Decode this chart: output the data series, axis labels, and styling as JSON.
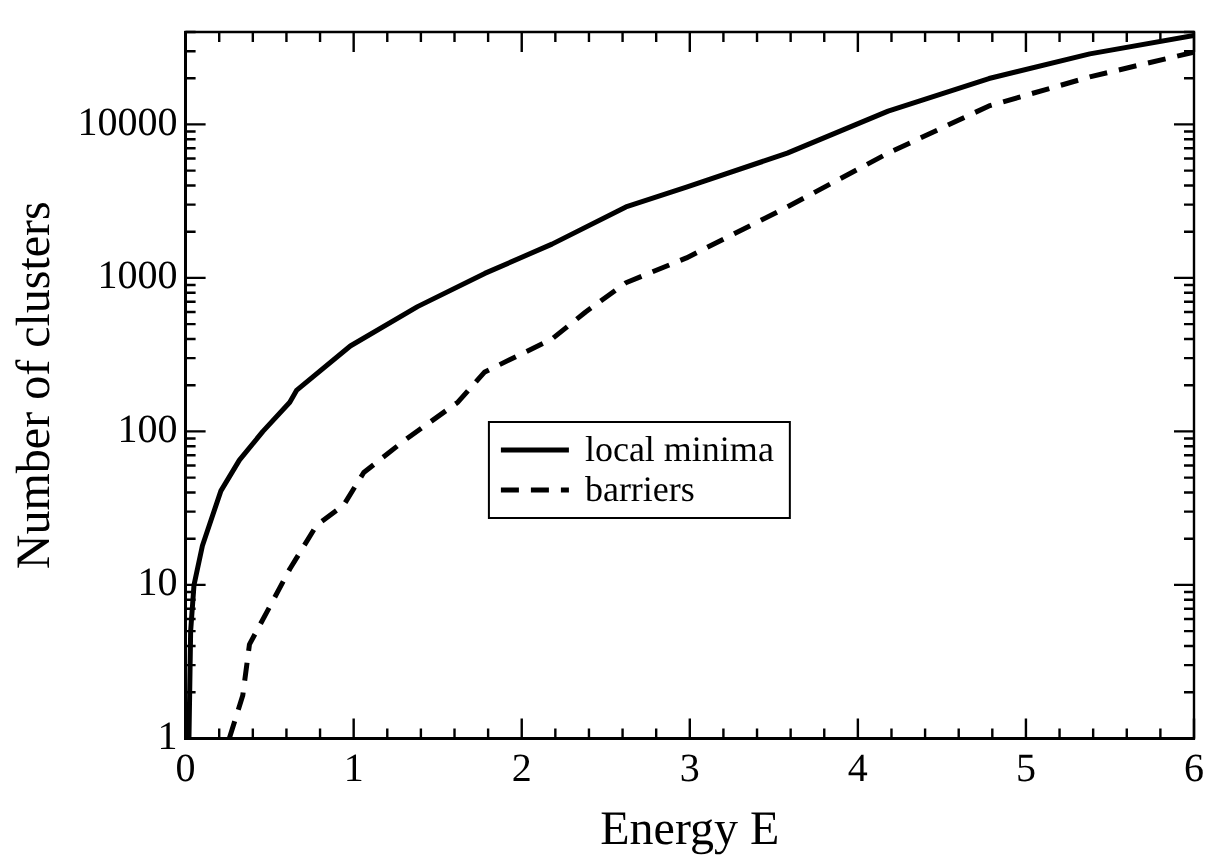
{
  "chart_data": {
    "type": "line",
    "xlabel": "Energy E",
    "ylabel": "Number of clusters",
    "log": "y",
    "grid": false,
    "legend": "center",
    "marker": "none",
    "xlim": [
      0,
      6
    ],
    "ylim": [
      1,
      40000
    ],
    "xticks": [
      0,
      {
        "value": 0.2,
        "label": null
      },
      {
        "value": 0.4,
        "label": null
      },
      {
        "value": 0.6,
        "label": null
      },
      {
        "value": 0.8,
        "label": null
      },
      1,
      {
        "value": 1.2,
        "label": null
      },
      {
        "value": 1.4,
        "label": null
      },
      {
        "value": 1.6,
        "label": null
      },
      {
        "value": 1.8,
        "label": null
      },
      2,
      {
        "value": 2.2,
        "label": null
      },
      {
        "value": 2.4,
        "label": null
      },
      {
        "value": 2.6,
        "label": null
      },
      {
        "value": 2.8,
        "label": null
      },
      3,
      {
        "value": 3.2,
        "label": null
      },
      {
        "value": 3.4,
        "label": null
      },
      {
        "value": 3.6,
        "label": null
      },
      {
        "value": 3.8,
        "label": null
      },
      4,
      {
        "value": 4.2,
        "label": null
      },
      {
        "value": 4.4,
        "label": null
      },
      {
        "value": 4.6,
        "label": null
      },
      {
        "value": 4.8,
        "label": null
      },
      5,
      {
        "value": 5.2,
        "label": null
      },
      {
        "value": 5.4,
        "label": null
      },
      {
        "value": 5.6,
        "label": null
      },
      {
        "value": 5.8,
        "label": null
      },
      6
    ],
    "yticks": [
      1,
      {
        "value": 2,
        "label": null
      },
      {
        "value": 3,
        "label": null
      },
      {
        "value": 4,
        "label": null
      },
      {
        "value": 5,
        "label": null
      },
      {
        "value": 6,
        "label": null
      },
      {
        "value": 7,
        "label": null
      },
      {
        "value": 8,
        "label": null
      },
      {
        "value": 9,
        "label": null
      },
      10,
      {
        "value": 20,
        "label": null
      },
      {
        "value": 30,
        "label": null
      },
      {
        "value": 40,
        "label": null
      },
      {
        "value": 50,
        "label": null
      },
      {
        "value": 60,
        "label": null
      },
      {
        "value": 70,
        "label": null
      },
      {
        "value": 80,
        "label": null
      },
      {
        "value": 90,
        "label": null
      },
      100,
      {
        "value": 200,
        "label": null
      },
      {
        "value": 300,
        "label": null
      },
      {
        "value": 400,
        "label": null
      },
      {
        "value": 500,
        "label": null
      },
      {
        "value": 600,
        "label": null
      },
      {
        "value": 700,
        "label": null
      },
      {
        "value": 800,
        "label": null
      },
      {
        "value": 900,
        "label": null
      },
      1000,
      {
        "value": 2000,
        "label": null
      },
      {
        "value": 3000,
        "label": null
      },
      {
        "value": 4000,
        "label": null
      },
      {
        "value": 5000,
        "label": null
      },
      {
        "value": 6000,
        "label": null
      },
      {
        "value": 7000,
        "label": null
      },
      {
        "value": 8000,
        "label": null
      },
      {
        "value": 9000,
        "label": null
      },
      10000,
      {
        "value": 20000,
        "label": null
      },
      {
        "value": 30000,
        "label": null
      },
      {
        "value": 40000,
        "label": null
      }
    ],
    "series": [
      {
        "name": "local minima",
        "color": "#000000",
        "line_style": "solid",
        "x": [
          0.02,
          0.03,
          0.05,
          0.1,
          0.21,
          0.32,
          0.46,
          0.62,
          0.66,
          0.98,
          1.38,
          1.78,
          2.18,
          2.62,
          2.98,
          3.58,
          4.18,
          4.78,
          5.38,
          6
        ],
        "values": [
          1,
          5,
          10,
          18,
          41,
          65,
          100,
          155,
          185,
          360,
          650,
          1070,
          1660,
          2900,
          3900,
          6500,
          12200,
          19900,
          28800,
          38000
        ]
      },
      {
        "name": "barriers",
        "color": "#000000",
        "line_style": "dashed",
        "x": [
          0.26,
          0.34,
          0.38,
          0.52,
          0.62,
          0.78,
          0.94,
          1.06,
          1.3,
          1.62,
          1.78,
          2.18,
          2.38,
          2.62,
          2.98,
          3.58,
          4.18,
          4.78,
          5.38,
          6
        ],
        "values": [
          1,
          1.9,
          4.1,
          7.9,
          12.7,
          24.5,
          33,
          54,
          87,
          155,
          244,
          400,
          600,
          930,
          1350,
          2900,
          6500,
          13200,
          20400,
          29600
        ]
      }
    ]
  }
}
